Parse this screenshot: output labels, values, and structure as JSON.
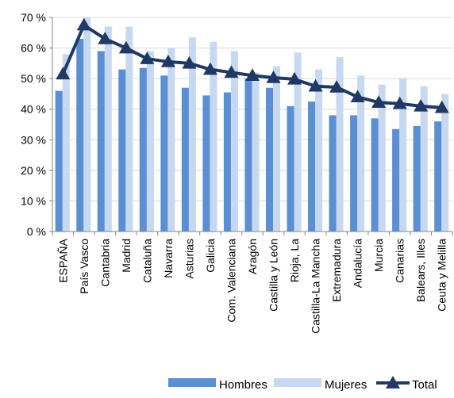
{
  "chart_data": {
    "type": "bar",
    "categories": [
      "ESPAÑA",
      "País Vasco",
      "Cantabria",
      "Madrid",
      "Cataluña",
      "Navarra",
      "Asturias",
      "Galicia",
      "Com. Valenciana",
      "Aragón",
      "Castilla y León",
      "Rioja, La",
      "Castilla-La Mancha",
      "Extremadura",
      "Andalucía",
      "Murcia",
      "Canarias",
      "Balears, Illes",
      "Ceuta y Melilla"
    ],
    "series": [
      {
        "name": "Hombres",
        "type": "bar",
        "color": "#5B8FD4",
        "values": [
          46,
          63,
          59,
          53,
          53.5,
          51,
          47,
          44.5,
          45.5,
          50,
          47,
          41,
          42.5,
          38,
          38,
          37,
          33.5,
          34.5,
          36
        ]
      },
      {
        "name": "Mujeres",
        "type": "bar",
        "color": "#C6D9F1",
        "values": [
          58,
          70,
          67,
          67,
          59,
          60,
          63.5,
          62,
          59,
          52,
          54,
          58.5,
          53,
          57,
          51,
          48,
          50,
          47.5,
          45
        ]
      },
      {
        "name": "Total",
        "type": "line",
        "color": "#1F3864",
        "values": [
          51.5,
          67.5,
          63,
          60,
          56.5,
          55.5,
          55,
          53,
          52,
          51,
          50.3,
          49.8,
          47.5,
          47.2,
          44,
          42.2,
          41.8,
          41,
          40.5
        ]
      }
    ],
    "y_ticks": [
      "0 %",
      "10 %",
      "20 %",
      "30 %",
      "40 %",
      "50 %",
      "60 %",
      "70 %"
    ],
    "ylim": [
      0,
      70
    ],
    "grid": true,
    "legend_position": "bottom"
  }
}
